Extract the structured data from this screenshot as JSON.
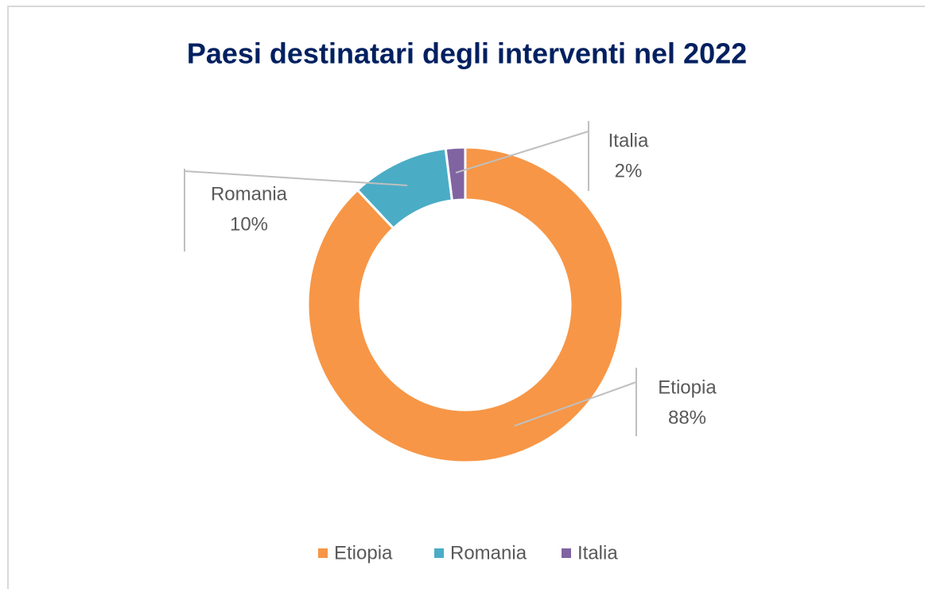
{
  "chart_data": {
    "type": "donut",
    "title": "Paesi destinatari degli interventi nel 2022",
    "categories": [
      "Etiopia",
      "Romania",
      "Italia"
    ],
    "values": [
      88,
      10,
      2
    ],
    "value_labels": [
      "88%",
      "10%",
      "2%"
    ],
    "colors": [
      "#f79646",
      "#4bacc6",
      "#8064a2"
    ],
    "legend": "bottom"
  }
}
